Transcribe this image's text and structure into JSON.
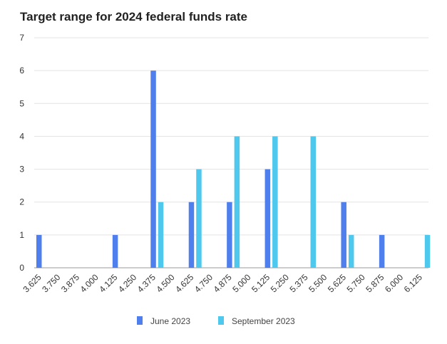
{
  "chart_data": {
    "type": "bar",
    "title": "Target range for 2024 federal funds rate",
    "xlabel": "",
    "ylabel": "",
    "categories": [
      "3.625",
      "3.750",
      "3.875",
      "4.000",
      "4.125",
      "4.250",
      "4.375",
      "4.500",
      "4.625",
      "4.750",
      "4.875",
      "5.000",
      "5.125",
      "5.250",
      "5.375",
      "5.500",
      "5.625",
      "5.750",
      "5.875",
      "6.000",
      "6.125"
    ],
    "series": [
      {
        "name": "June 2023",
        "color": "#4f7fec",
        "values": [
          1,
          0,
          0,
          0,
          1,
          0,
          6,
          0,
          2,
          0,
          2,
          0,
          3,
          0,
          0,
          0,
          2,
          0,
          1,
          0,
          0
        ]
      },
      {
        "name": "September 2023",
        "color": "#4fc8ee",
        "values": [
          0,
          0,
          0,
          0,
          0,
          0,
          2,
          0,
          3,
          0,
          4,
          0,
          4,
          0,
          4,
          0,
          1,
          0,
          0,
          0,
          1
        ]
      }
    ],
    "ylim": [
      0,
      7
    ],
    "yticks": [
      0,
      1,
      2,
      3,
      4,
      5,
      6,
      7
    ],
    "grid": true,
    "legend_position": "bottom"
  }
}
